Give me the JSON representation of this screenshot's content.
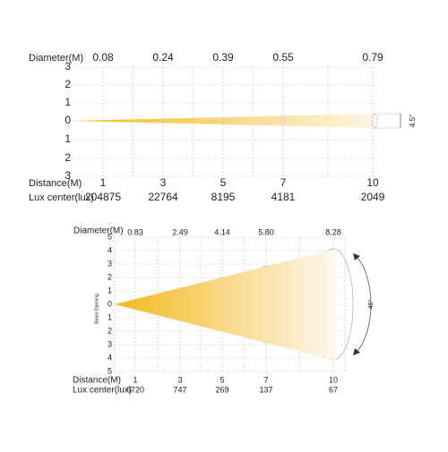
{
  "chart1": {
    "diameter_label": "Diameter(M)",
    "diameters": [
      "0.08",
      "0.24",
      "0.39",
      "0.55",
      "0.79"
    ],
    "y_labels": [
      "3",
      "2",
      "1",
      "0",
      "1",
      "2",
      "3"
    ],
    "distance_label": "Distance(M)",
    "distances": [
      "1",
      "3",
      "5",
      "7",
      "10"
    ],
    "lux_label": "Lux center(lux)",
    "lux": [
      "204875",
      "22764",
      "8195",
      "4181",
      "2049"
    ],
    "angle": "4.5°"
  },
  "chart2": {
    "diameter_label": "Diameter(M)",
    "diameters": [
      "0.83",
      "2.49",
      "4.14",
      "5.80",
      "8.28"
    ],
    "y_labels": [
      "5",
      "4",
      "3",
      "2",
      "1",
      "0",
      "1",
      "2",
      "3",
      "4",
      "5"
    ],
    "distance_label": "Distance(M)",
    "distances": [
      "1",
      "3",
      "5",
      "7",
      "10"
    ],
    "lux_label": "Lux center(lux)",
    "lux": [
      "6720",
      "747",
      "269",
      "137",
      "67"
    ],
    "beam_label": "Beam Opening",
    "angle": "45°"
  }
}
